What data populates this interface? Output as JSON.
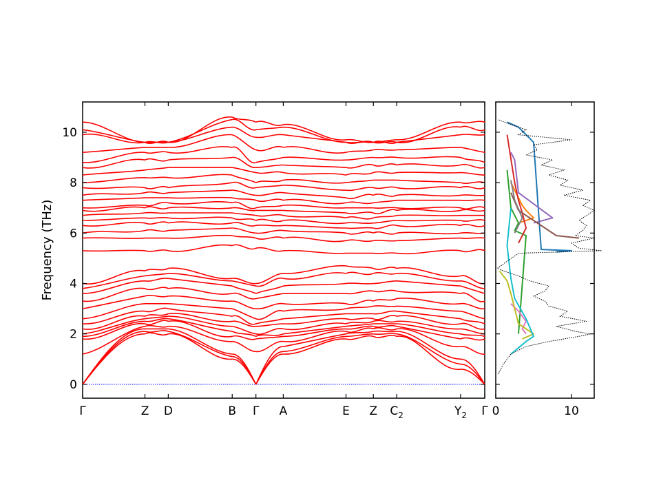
{
  "chart_data": [
    {
      "type": "line",
      "subtype": "phonon-band-structure",
      "ylabel": "Frequency (THz)",
      "ylim": [
        -0.55,
        11.2
      ],
      "y_ticks": [
        0,
        2,
        4,
        6,
        8,
        10
      ],
      "x_ticks": [
        {
          "label": "Γ",
          "x": 0.0
        },
        {
          "label": "Z",
          "x": 0.155
        },
        {
          "label": "D",
          "x": 0.213
        },
        {
          "label": "B",
          "x": 0.372
        },
        {
          "label": "Γ",
          "x": 0.431
        },
        {
          "label": "A",
          "x": 0.499
        },
        {
          "label": "E",
          "x": 0.655
        },
        {
          "label": "Z",
          "x": 0.723
        },
        {
          "label": "C",
          "sub": "2",
          "x": 0.781
        },
        {
          "label": "Y",
          "sub": "2",
          "x": 0.94
        },
        {
          "label": "Γ",
          "x": 1.0
        }
      ],
      "zero_line": {
        "y": 0,
        "color": "#0000ff",
        "style": "dotted"
      },
      "band_color": "#ff0000",
      "segments": [
        {
          "from": "Γ",
          "to": "Z",
          "x0": 0.0,
          "x1": 0.155,
          "start": [
            0.0,
            0.0,
            0.0,
            1.2,
            1.8,
            1.9,
            2.0,
            2.2,
            2.4,
            2.6,
            3.0,
            3.3,
            3.6,
            3.8,
            4.0,
            5.3,
            5.8,
            6.0,
            6.3,
            6.5,
            6.7,
            6.9,
            7.0,
            7.3,
            7.5,
            7.8,
            8.0,
            8.3,
            8.6,
            8.8,
            9.2,
            9.9,
            10.1,
            10.4
          ],
          "end": [
            2.0,
            2.1,
            2.2,
            2.3,
            2.4,
            2.5,
            2.6,
            2.7,
            2.9,
            3.2,
            3.5,
            3.8,
            4.1,
            4.3,
            4.5,
            5.3,
            5.8,
            6.1,
            6.4,
            6.6,
            6.8,
            7.0,
            7.1,
            7.4,
            7.6,
            7.8,
            8.2,
            8.5,
            8.9,
            9.2,
            9.4,
            9.6,
            9.6,
            9.6
          ]
        },
        {
          "from": "Z",
          "to": "D",
          "x0": 0.155,
          "x1": 0.213,
          "start": [
            2.0,
            2.1,
            2.2,
            2.3,
            2.4,
            2.5,
            2.6,
            2.7,
            2.9,
            3.2,
            3.5,
            3.8,
            4.1,
            4.3,
            4.5,
            5.3,
            5.8,
            6.1,
            6.4,
            6.6,
            6.8,
            7.0,
            7.1,
            7.4,
            7.6,
            7.8,
            8.2,
            8.5,
            8.9,
            9.2,
            9.4,
            9.6,
            9.6,
            9.6
          ],
          "end": [
            2.0,
            2.1,
            2.2,
            2.3,
            2.5,
            2.6,
            2.7,
            2.8,
            3.0,
            3.2,
            3.5,
            3.8,
            4.2,
            4.4,
            4.6,
            5.3,
            5.8,
            6.1,
            6.4,
            6.6,
            6.8,
            7.0,
            7.2,
            7.4,
            7.6,
            7.8,
            8.2,
            8.6,
            8.9,
            9.2,
            9.4,
            9.6,
            9.6,
            9.6
          ]
        },
        {
          "from": "D",
          "to": "B",
          "x0": 0.213,
          "x1": 0.372,
          "start": [
            2.0,
            2.1,
            2.2,
            2.3,
            2.5,
            2.6,
            2.7,
            2.8,
            3.0,
            3.2,
            3.5,
            3.8,
            4.2,
            4.4,
            4.6,
            5.3,
            5.8,
            6.1,
            6.4,
            6.6,
            6.8,
            7.0,
            7.2,
            7.4,
            7.6,
            7.8,
            8.2,
            8.6,
            8.9,
            9.2,
            9.4,
            9.6,
            9.6,
            9.6
          ],
          "end": [
            1.0,
            1.1,
            1.2,
            1.7,
            1.9,
            2.1,
            2.3,
            2.5,
            2.7,
            3.0,
            3.3,
            3.6,
            3.9,
            4.1,
            4.2,
            5.5,
            5.9,
            6.2,
            6.4,
            6.6,
            6.8,
            7.0,
            7.2,
            7.4,
            7.7,
            8.0,
            8.3,
            8.6,
            9.0,
            9.4,
            9.9,
            10.2,
            10.5,
            10.6
          ]
        },
        {
          "from": "B",
          "to": "Γ",
          "x0": 0.372,
          "x1": 0.431,
          "start": [
            1.0,
            1.1,
            1.2,
            1.7,
            1.9,
            2.1,
            2.3,
            2.5,
            2.7,
            3.0,
            3.3,
            3.6,
            3.9,
            4.1,
            4.2,
            5.5,
            5.9,
            6.2,
            6.4,
            6.6,
            6.8,
            7.0,
            7.2,
            7.4,
            7.7,
            8.0,
            8.3,
            8.6,
            9.0,
            9.4,
            9.9,
            10.2,
            10.5,
            10.6
          ],
          "end": [
            0.0,
            0.0,
            0.0,
            1.3,
            1.8,
            1.9,
            2.0,
            2.3,
            2.4,
            2.6,
            3.0,
            3.4,
            3.6,
            3.9,
            4.0,
            5.4,
            5.8,
            6.0,
            6.3,
            6.5,
            6.7,
            6.9,
            7.0,
            7.3,
            7.5,
            7.8,
            8.0,
            8.4,
            8.6,
            8.8,
            9.3,
            9.8,
            10.1,
            10.4
          ]
        },
        {
          "from": "Γ",
          "to": "A",
          "x0": 0.431,
          "x1": 0.499,
          "start": [
            0.0,
            0.0,
            0.0,
            1.3,
            1.8,
            1.9,
            2.0,
            2.3,
            2.4,
            2.6,
            3.0,
            3.4,
            3.6,
            3.9,
            4.0,
            5.4,
            5.8,
            6.0,
            6.3,
            6.5,
            6.7,
            6.9,
            7.0,
            7.3,
            7.5,
            7.8,
            8.0,
            8.4,
            8.6,
            8.8,
            9.3,
            9.8,
            10.1,
            10.4
          ],
          "end": [
            1.2,
            1.3,
            1.5,
            1.7,
            1.9,
            2.0,
            2.2,
            2.4,
            2.6,
            2.9,
            3.2,
            3.6,
            3.9,
            4.2,
            4.4,
            5.3,
            5.8,
            6.1,
            6.3,
            6.5,
            6.7,
            6.9,
            7.1,
            7.3,
            7.6,
            7.9,
            8.1,
            8.4,
            8.7,
            9.0,
            9.4,
            9.9,
            10.2,
            10.3
          ]
        },
        {
          "from": "A",
          "to": "E",
          "x0": 0.499,
          "x1": 0.655,
          "start": [
            1.2,
            1.3,
            1.5,
            1.7,
            1.9,
            2.0,
            2.2,
            2.4,
            2.6,
            2.9,
            3.2,
            3.6,
            3.9,
            4.2,
            4.4,
            5.3,
            5.8,
            6.1,
            6.3,
            6.5,
            6.7,
            6.9,
            7.1,
            7.3,
            7.6,
            7.9,
            8.1,
            8.4,
            8.7,
            9.0,
            9.4,
            9.9,
            10.2,
            10.3
          ],
          "end": [
            1.8,
            1.9,
            2.0,
            2.1,
            2.2,
            2.3,
            2.4,
            2.6,
            2.8,
            3.0,
            3.2,
            3.6,
            4.0,
            4.4,
            4.7,
            5.2,
            5.7,
            6.0,
            6.2,
            6.4,
            6.6,
            6.8,
            7.0,
            7.2,
            7.4,
            7.7,
            8.0,
            8.3,
            8.6,
            8.9,
            9.2,
            9.6,
            9.6,
            9.7
          ]
        },
        {
          "from": "E",
          "to": "Z",
          "x0": 0.655,
          "x1": 0.723,
          "start": [
            1.8,
            1.9,
            2.0,
            2.1,
            2.2,
            2.3,
            2.4,
            2.6,
            2.8,
            3.0,
            3.2,
            3.6,
            4.0,
            4.4,
            4.7,
            5.2,
            5.7,
            6.0,
            6.2,
            6.4,
            6.6,
            6.8,
            7.0,
            7.2,
            7.4,
            7.7,
            8.0,
            8.3,
            8.6,
            8.9,
            9.2,
            9.6,
            9.6,
            9.7
          ],
          "end": [
            1.9,
            2.0,
            2.1,
            2.2,
            2.3,
            2.4,
            2.5,
            2.6,
            2.8,
            3.1,
            3.3,
            3.7,
            4.0,
            4.4,
            4.6,
            5.2,
            5.7,
            6.0,
            6.2,
            6.4,
            6.6,
            6.8,
            7.0,
            7.2,
            7.5,
            7.8,
            8.1,
            8.4,
            8.7,
            9.0,
            9.3,
            9.6,
            9.6,
            9.6
          ]
        },
        {
          "from": "Z",
          "to": "C2",
          "x0": 0.723,
          "x1": 0.781,
          "start": [
            1.9,
            2.0,
            2.1,
            2.2,
            2.3,
            2.4,
            2.5,
            2.6,
            2.8,
            3.1,
            3.3,
            3.7,
            4.0,
            4.4,
            4.6,
            5.2,
            5.7,
            6.0,
            6.2,
            6.4,
            6.6,
            6.8,
            7.0,
            7.2,
            7.5,
            7.8,
            8.1,
            8.4,
            8.7,
            9.0,
            9.3,
            9.6,
            9.6,
            9.6
          ],
          "end": [
            1.9,
            2.0,
            2.1,
            2.2,
            2.3,
            2.4,
            2.5,
            2.7,
            2.9,
            3.1,
            3.4,
            3.7,
            4.1,
            4.4,
            4.6,
            5.2,
            5.7,
            6.0,
            6.3,
            6.5,
            6.7,
            6.9,
            7.0,
            7.3,
            7.5,
            7.8,
            8.1,
            8.4,
            8.7,
            9.0,
            9.3,
            9.6,
            9.6,
            9.7
          ]
        },
        {
          "from": "C2",
          "to": "Y2",
          "x0": 0.781,
          "x1": 0.94,
          "start": [
            1.9,
            2.0,
            2.1,
            2.2,
            2.3,
            2.4,
            2.5,
            2.7,
            2.9,
            3.1,
            3.4,
            3.7,
            4.1,
            4.4,
            4.6,
            5.2,
            5.7,
            6.0,
            6.3,
            6.5,
            6.7,
            6.9,
            7.0,
            7.3,
            7.5,
            7.8,
            8.1,
            8.4,
            8.7,
            9.0,
            9.3,
            9.6,
            9.6,
            9.7
          ],
          "end": [
            0.6,
            0.8,
            1.0,
            1.5,
            1.8,
            2.0,
            2.2,
            2.4,
            2.6,
            2.9,
            3.2,
            3.6,
            3.9,
            4.1,
            4.3,
            5.3,
            5.8,
            6.0,
            6.3,
            6.5,
            6.7,
            6.9,
            7.0,
            7.3,
            7.5,
            7.8,
            8.0,
            8.4,
            8.7,
            9.0,
            9.4,
            9.9,
            10.2,
            10.4
          ]
        },
        {
          "from": "Y2",
          "to": "Γ",
          "x0": 0.94,
          "x1": 1.0,
          "start": [
            0.6,
            0.8,
            1.0,
            1.5,
            1.8,
            2.0,
            2.2,
            2.4,
            2.6,
            2.9,
            3.2,
            3.6,
            3.9,
            4.1,
            4.3,
            5.3,
            5.8,
            6.0,
            6.3,
            6.5,
            6.7,
            6.9,
            7.0,
            7.3,
            7.5,
            7.8,
            8.0,
            8.4,
            8.7,
            9.0,
            9.4,
            9.9,
            10.2,
            10.4
          ],
          "end": [
            0.0,
            0.0,
            0.0,
            1.2,
            1.8,
            1.9,
            2.0,
            2.2,
            2.4,
            2.6,
            3.0,
            3.3,
            3.6,
            3.8,
            4.0,
            5.3,
            5.8,
            6.0,
            6.3,
            6.5,
            6.7,
            6.9,
            7.0,
            7.3,
            7.5,
            7.8,
            8.0,
            8.3,
            8.6,
            8.8,
            9.2,
            9.9,
            10.1,
            10.4
          ]
        }
      ]
    },
    {
      "type": "line",
      "subtype": "density-of-states",
      "xlim": [
        0,
        13
      ],
      "x_ticks": [
        0,
        10
      ],
      "ylim": [
        -0.55,
        11.2
      ],
      "total": {
        "color": "#000000",
        "style": "dotted",
        "freq": [
          0.4,
          0.8,
          1.2,
          1.5,
          1.7,
          1.9,
          2.0,
          2.1,
          2.3,
          2.5,
          2.7,
          2.9,
          3.1,
          3.3,
          3.5,
          3.7,
          3.9,
          4.1,
          4.3,
          4.5,
          4.6,
          5.2,
          5.3,
          5.4,
          5.6,
          5.8,
          5.9,
          6.1,
          6.3,
          6.5,
          6.7,
          6.9,
          7.1,
          7.3,
          7.5,
          7.7,
          7.9,
          8.1,
          8.3,
          8.5,
          8.7,
          8.9,
          9.1,
          9.3,
          9.5,
          9.7,
          9.9,
          10.1,
          10.3,
          10.5
        ],
        "dos": [
          0.3,
          1.0,
          2.0,
          4.0,
          7.0,
          11.0,
          12.5,
          10.5,
          8.0,
          12.0,
          8.5,
          9.5,
          7.0,
          6.5,
          5.0,
          6.5,
          7.0,
          4.5,
          3.0,
          1.0,
          0.2,
          3.0,
          14.0,
          11.0,
          10.0,
          13.0,
          10.5,
          11.5,
          12.0,
          11.0,
          12.0,
          13.0,
          11.5,
          12.5,
          9.0,
          11.5,
          8.5,
          9.5,
          7.0,
          9.0,
          6.0,
          7.5,
          4.0,
          5.5,
          5.0,
          10.0,
          3.0,
          4.0,
          2.0,
          0.3
        ]
      },
      "partials": [
        {
          "name": "",
          "color": "#1f77b4",
          "freq": [
            5.25,
            5.3,
            5.35,
            9.6,
            10.2,
            10.4
          ],
          "dos": [
            8.0,
            10.0,
            6.0,
            5.0,
            3.0,
            1.5
          ]
        },
        {
          "name": "",
          "color": "#ff7f0e",
          "freq": [
            6.4,
            6.6,
            6.9,
            7.1,
            8.0
          ],
          "dos": [
            3.0,
            5.0,
            4.0,
            3.5,
            2.0
          ]
        },
        {
          "name": "",
          "color": "#2ca02c",
          "freq": [
            2.0,
            5.9,
            6.1,
            6.4,
            7.0,
            8.5
          ],
          "dos": [
            3.0,
            4.0,
            2.5,
            3.0,
            2.0,
            1.5
          ]
        },
        {
          "name": "",
          "color": "#d62728",
          "freq": [
            5.6,
            6.2,
            6.8,
            7.3,
            8.0,
            9.9
          ],
          "dos": [
            3.0,
            4.0,
            3.5,
            3.0,
            2.5,
            1.5
          ]
        },
        {
          "name": "",
          "color": "#9467bd",
          "freq": [
            6.4,
            6.6,
            7.6,
            8.9,
            9.2
          ],
          "dos": [
            5.0,
            7.5,
            3.0,
            2.5,
            2.0
          ]
        },
        {
          "name": "",
          "color": "#8c564b",
          "freq": [
            5.8,
            5.9,
            6.9,
            7.6
          ],
          "dos": [
            11.0,
            8.0,
            3.0,
            2.0
          ]
        },
        {
          "name": "",
          "color": "#e377c2",
          "freq": [
            2.0,
            2.2,
            2.5,
            2.9,
            3.2
          ],
          "dos": [
            4.0,
            3.5,
            4.0,
            3.0,
            2.0
          ]
        },
        {
          "name": "",
          "color": "#7f7f7f",
          "freq": [
            6.0,
            6.6,
            7.3,
            8.1
          ],
          "dos": [
            2.5,
            3.5,
            2.5,
            2.0
          ]
        },
        {
          "name": "",
          "color": "#bcbd22",
          "freq": [
            1.8,
            2.0,
            2.4,
            3.0,
            3.6,
            4.1,
            4.5
          ],
          "dos": [
            3.5,
            5.0,
            3.0,
            2.5,
            2.0,
            1.5,
            0.5
          ]
        },
        {
          "name": "",
          "color": "#17becf",
          "freq": [
            1.2,
            1.7,
            1.9,
            2.6,
            3.4,
            4.2,
            5.5,
            7.0
          ],
          "dos": [
            2.0,
            4.0,
            5.0,
            4.0,
            2.5,
            2.0,
            1.5,
            2.0
          ]
        }
      ]
    }
  ]
}
